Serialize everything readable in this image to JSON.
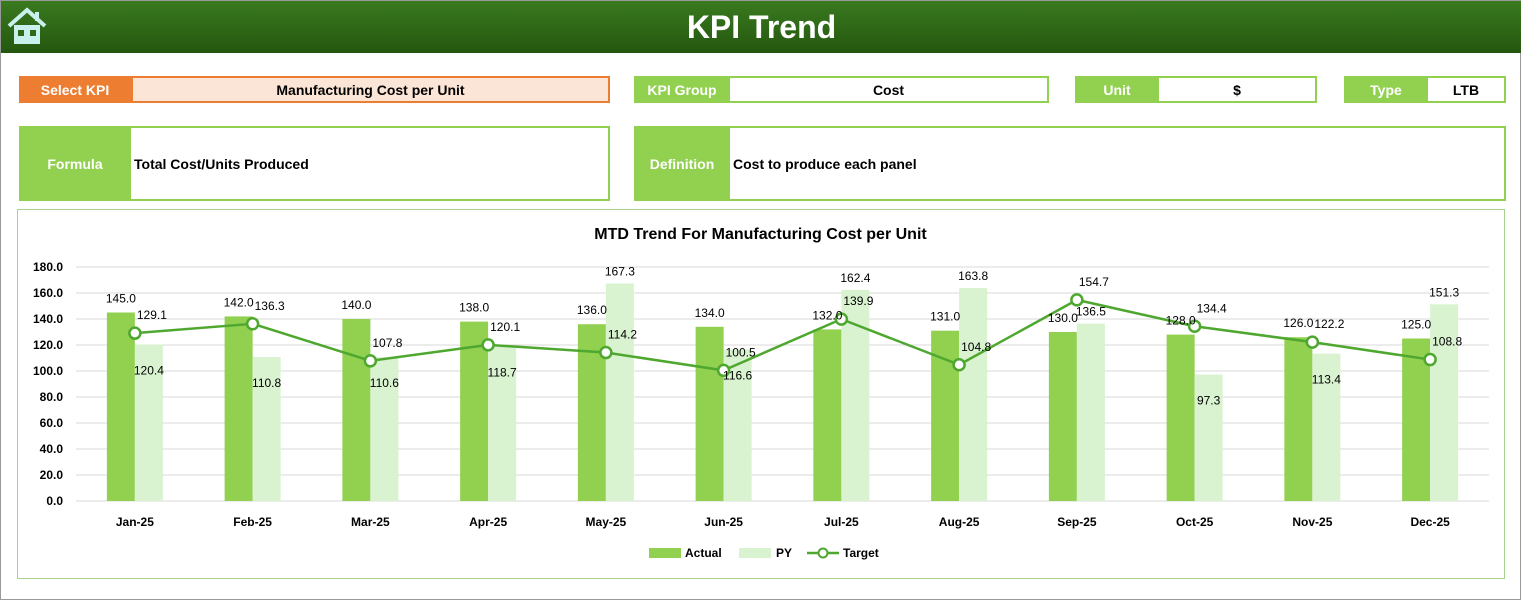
{
  "header": {
    "title": "KPI Trend",
    "home_icon": "home-icon"
  },
  "select_kpi": {
    "label": "Select KPI",
    "value": "Manufacturing Cost per Unit"
  },
  "kpi_group": {
    "label": "KPI Group",
    "value": "Cost"
  },
  "unit": {
    "label": "Unit",
    "value": "$"
  },
  "type": {
    "label": "Type",
    "value": "LTB"
  },
  "formula": {
    "label": "Formula",
    "value": "Total Cost/Units Produced"
  },
  "definition": {
    "label": "Definition",
    "value": "Cost to produce each panel"
  },
  "colors": {
    "actual": "#92d050",
    "py": "#d9f2d0",
    "target": "#4ea72e",
    "header": "#2e6b17",
    "select": "#ed7d31"
  },
  "chart_data": {
    "type": "bar",
    "title": "MTD Trend For Manufacturing Cost per Unit",
    "categories": [
      "Jan-25",
      "Feb-25",
      "Mar-25",
      "Apr-25",
      "May-25",
      "Jun-25",
      "Jul-25",
      "Aug-25",
      "Sep-25",
      "Oct-25",
      "Nov-25",
      "Dec-25"
    ],
    "ylim": [
      0,
      180
    ],
    "yticks": [
      "0.0",
      "20.0",
      "40.0",
      "60.0",
      "80.0",
      "100.0",
      "120.0",
      "140.0",
      "160.0",
      "180.0"
    ],
    "grid": true,
    "legend": "bottom",
    "series": [
      {
        "name": "Actual",
        "type": "bar",
        "values": [
          145.0,
          142.0,
          140.0,
          138.0,
          136.0,
          134.0,
          132.0,
          131.0,
          130.0,
          128.0,
          126.0,
          125.0
        ]
      },
      {
        "name": "PY",
        "type": "bar",
        "values": [
          120.4,
          110.8,
          110.6,
          118.7,
          167.3,
          116.6,
          162.4,
          163.8,
          136.5,
          97.3,
          113.4,
          151.3
        ]
      },
      {
        "name": "Target",
        "type": "line",
        "values": [
          129.1,
          136.3,
          107.8,
          120.1,
          114.2,
          100.5,
          139.9,
          104.8,
          154.7,
          134.4,
          122.2,
          108.8
        ]
      }
    ]
  }
}
